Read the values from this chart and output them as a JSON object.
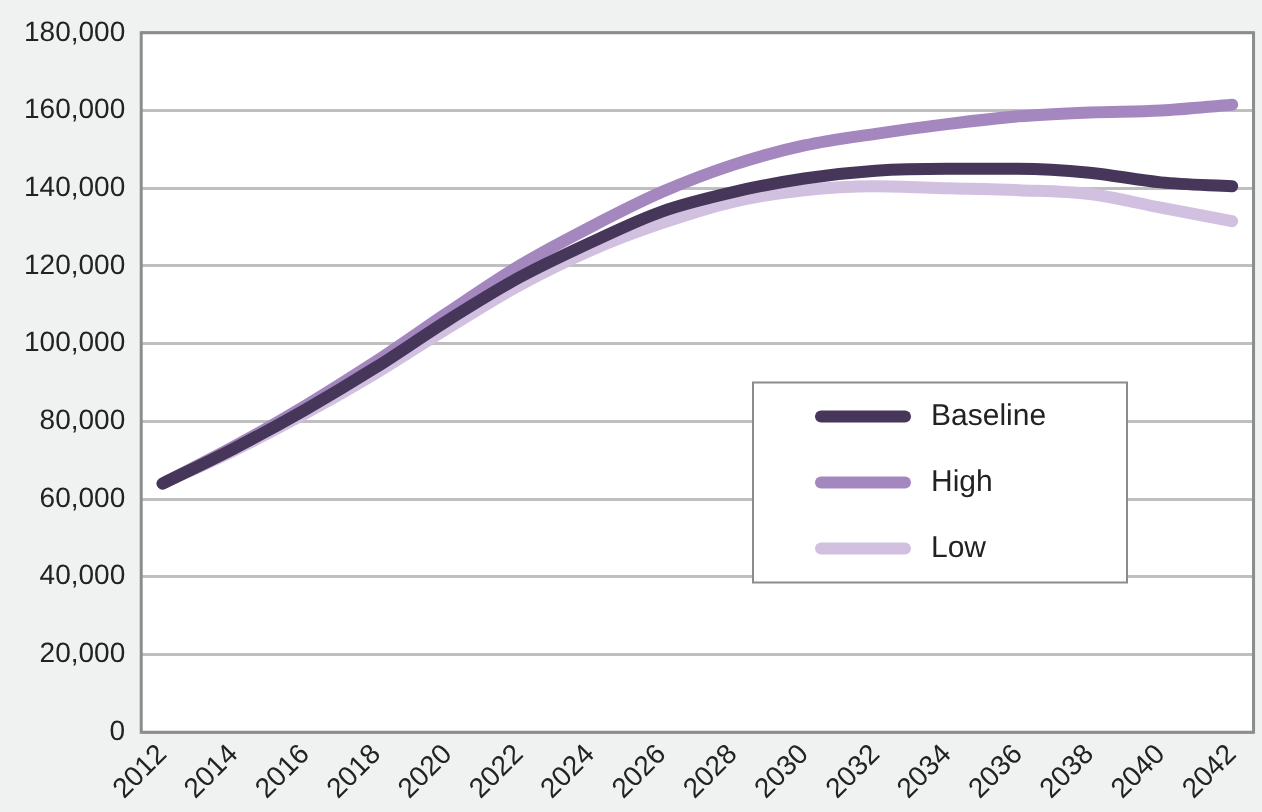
{
  "chart_data": {
    "type": "line",
    "x": [
      2012,
      2014,
      2016,
      2018,
      2020,
      2022,
      2024,
      2026,
      2028,
      2030,
      2032,
      2034,
      2036,
      2038,
      2040,
      2042
    ],
    "series": [
      {
        "name": "Baseline",
        "color": "#46365a",
        "values": [
          64000,
          73000,
          83000,
          94000,
          106000,
          117000,
          126000,
          134000,
          139000,
          142500,
          144500,
          145000,
          145000,
          144000,
          141500,
          140500
        ]
      },
      {
        "name": "High",
        "color": "#a587bf",
        "values": [
          64000,
          73500,
          84000,
          95500,
          108000,
          120000,
          130000,
          139000,
          146000,
          151000,
          154000,
          156500,
          158500,
          159500,
          160000,
          161500
        ]
      },
      {
        "name": "Low",
        "color": "#d1c0e0",
        "values": [
          64000,
          72500,
          82000,
          92500,
          104000,
          115000,
          124000,
          131000,
          136500,
          139500,
          140500,
          140000,
          139500,
          138500,
          135000,
          131500
        ]
      }
    ],
    "xlim": [
      2011.4,
      2042.6
    ],
    "xticks": [
      2012,
      2014,
      2016,
      2018,
      2020,
      2022,
      2024,
      2026,
      2028,
      2030,
      2032,
      2034,
      2036,
      2038,
      2040,
      2042
    ],
    "ylim": [
      0,
      180000
    ],
    "yticks": [
      0,
      {
        "value": 20000,
        "label": "20,000"
      },
      {
        "value": 40000,
        "label": "40,000"
      },
      {
        "value": 60000,
        "label": "60,000"
      },
      {
        "value": 80000,
        "label": "80,000"
      },
      {
        "value": 100000,
        "label": "100,000"
      },
      {
        "value": 120000,
        "label": "120,000"
      },
      {
        "value": 140000,
        "label": "140,000"
      },
      {
        "value": 160000,
        "label": "160,000"
      },
      {
        "value": 180000,
        "label": "180,000"
      }
    ],
    "grid": "y",
    "legend": "right",
    "marker": "none",
    "line_style": "solid"
  }
}
